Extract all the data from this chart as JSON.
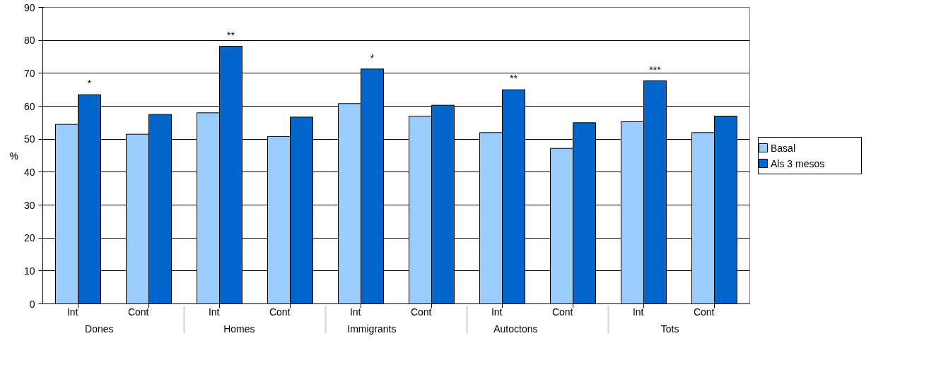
{
  "chart_data": {
    "type": "bar",
    "ylabel": "%",
    "categories": [
      "Int",
      "Cont",
      "Int",
      "Cont",
      "Int",
      "Cont",
      "Int",
      "Cont",
      "Int",
      "Cont"
    ],
    "series": [
      {
        "name": "Basal",
        "color": "#99ccff",
        "values": [
          54.5,
          51.5,
          58,
          50.8,
          60.8,
          57,
          52,
          47.2,
          55.3,
          52
        ]
      },
      {
        "name": "Als 3 mesos",
        "color": "#0066cc",
        "values": [
          63.5,
          57.5,
          78.2,
          56.7,
          71.3,
          60.3,
          65,
          55,
          67.7,
          57
        ]
      }
    ],
    "ylim": [
      0,
      90
    ],
    "yticks": [
      0,
      10,
      20,
      30,
      40,
      50,
      60,
      70,
      80,
      90
    ],
    "grid": "y",
    "legend": "right",
    "annotations": [
      "Dones",
      "Homes",
      "Immigrants",
      "Autoctons",
      "Tots",
      "*",
      "**",
      "*",
      "**",
      "***"
    ]
  }
}
